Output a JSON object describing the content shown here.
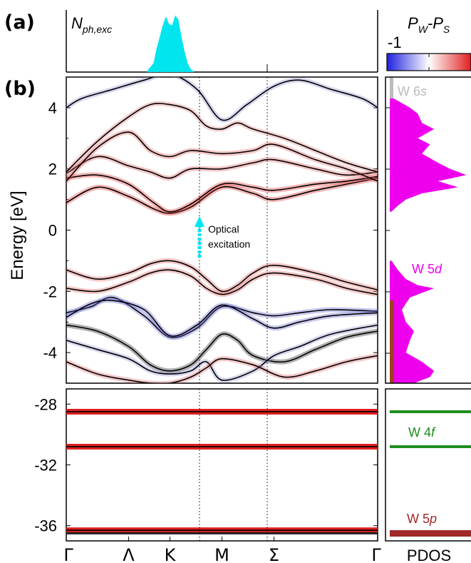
{
  "panel_labels": {
    "a": "(a)",
    "b": "(b)"
  },
  "nexc_label": {
    "base": "N",
    "sub": "ph,exc"
  },
  "colorbar": {
    "label_base": "P",
    "label_sub1": "W",
    "label_mid": "-P",
    "label_sub2": "S",
    "min_label": "-1",
    "low_color": "#2020e0",
    "mid_color": "#ffffff",
    "high_color": "#e02020"
  },
  "y_axis_label": "Energy [eV]",
  "annotation": {
    "line1": "Optical",
    "line2": "excitation",
    "arrow_color": "#00e5ee"
  },
  "pdos_labels": {
    "w6s": {
      "base": "W 6",
      "italic": "s",
      "color": "#bbbbbb"
    },
    "w5d": {
      "base": "W 5",
      "italic": "d",
      "color": "#ee00ee"
    },
    "w4f": {
      "base": "W 4",
      "italic": "f",
      "color": "#1e8c1e"
    },
    "w5p": {
      "base": "W 5",
      "italic": "p",
      "color": "#a02828"
    },
    "xlabel": "PDOS"
  },
  "chart_data": [
    {
      "type": "area",
      "panel": "a",
      "ylabel": "N_ph,exc",
      "x_positions": [
        0,
        0.2,
        0.333,
        0.5,
        0.667,
        0.8,
        1
      ],
      "description_values": "exciton population concentrated around K",
      "x": [
        0.26,
        0.28,
        0.29,
        0.3,
        0.31,
        0.32,
        0.33,
        0.34,
        0.35,
        0.36,
        0.37,
        0.38,
        0.39,
        0.4,
        0.41
      ],
      "values": [
        0.02,
        0.15,
        0.4,
        0.6,
        0.8,
        0.95,
        0.82,
        0.8,
        0.97,
        0.9,
        0.6,
        0.35,
        0.15,
        0.05,
        0.01
      ],
      "color": "#00e5ee"
    },
    {
      "type": "line",
      "panel": "b-valence",
      "xlabel": "",
      "ylabel": "Energy [eV]",
      "k_labels": [
        "Γ",
        "Λ",
        "K",
        "M",
        "Σ",
        "Γ"
      ],
      "k_positions": [
        0,
        0.2,
        0.333,
        0.5,
        0.667,
        1
      ],
      "ylim": [
        -5,
        5
      ],
      "yticks": [
        4,
        2,
        0,
        -2,
        -4
      ],
      "series": [
        {
          "x": [
            0,
            0.1,
            0.2,
            0.28,
            0.333,
            0.4,
            0.5,
            0.6,
            0.667,
            0.8,
            0.9,
            1
          ],
          "y": [
            0.9,
            1.4,
            1.1,
            0.7,
            0.55,
            0.75,
            1.4,
            1.2,
            1.0,
            1.3,
            1.5,
            1.7
          ],
          "color": "#e03030"
        },
        {
          "x": [
            0,
            0.1,
            0.2,
            0.28,
            0.333,
            0.4,
            0.5,
            0.6,
            0.667,
            0.8,
            0.9,
            1
          ],
          "y": [
            1.7,
            1.8,
            1.5,
            0.9,
            0.6,
            0.85,
            1.5,
            1.4,
            1.3,
            1.5,
            1.6,
            1.75
          ],
          "color": "#e03030"
        },
        {
          "x": [
            0,
            0.1,
            0.2,
            0.27,
            0.333,
            0.4,
            0.5,
            0.6,
            0.667,
            0.8,
            0.9,
            1
          ],
          "y": [
            1.85,
            2.4,
            2.1,
            1.9,
            1.7,
            2.0,
            2.0,
            2.2,
            2.3,
            2.0,
            1.8,
            1.9
          ],
          "color": "#e06060"
        },
        {
          "x": [
            0,
            0.1,
            0.2,
            0.27,
            0.333,
            0.4,
            0.5,
            0.6,
            0.667,
            0.8,
            0.9,
            1
          ],
          "y": [
            1.6,
            2.7,
            3.2,
            2.6,
            2.4,
            2.6,
            2.5,
            2.6,
            2.8,
            2.3,
            2.0,
            1.6
          ],
          "color": "#e06060"
        },
        {
          "x": [
            0,
            0.1,
            0.2,
            0.27,
            0.333,
            0.4,
            0.45,
            0.5,
            0.55,
            0.6,
            0.7,
            0.8,
            0.9,
            1
          ],
          "y": [
            1.9,
            2.9,
            3.7,
            4.1,
            4.1,
            3.9,
            3.4,
            3.3,
            3.5,
            3.3,
            3.0,
            2.6,
            2.2,
            1.9
          ],
          "color": "#e08080"
        },
        {
          "x": [
            0,
            0.05,
            0.15,
            0.25,
            0.333,
            0.42,
            0.5,
            0.58,
            0.667,
            0.75,
            0.85,
            0.95,
            1
          ],
          "y": [
            4.0,
            4.3,
            4.6,
            4.9,
            5.1,
            4.6,
            3.6,
            4.1,
            4.7,
            4.9,
            4.6,
            4.3,
            4.0
          ],
          "color": "#9090d0"
        },
        {
          "x": [
            0,
            0.1,
            0.2,
            0.27,
            0.333,
            0.4,
            0.45,
            0.5,
            0.55,
            0.6,
            0.667,
            0.8,
            0.9,
            1
          ],
          "y": [
            -1.3,
            -1.6,
            -1.4,
            -1.1,
            -1.0,
            -1.2,
            -1.6,
            -2.0,
            -1.8,
            -1.4,
            -1.15,
            -1.4,
            -1.7,
            -1.95
          ],
          "color": "#e06060"
        },
        {
          "x": [
            0,
            0.1,
            0.2,
            0.27,
            0.333,
            0.4,
            0.45,
            0.5,
            0.55,
            0.6,
            0.667,
            0.8,
            0.9,
            1
          ],
          "y": [
            -1.9,
            -2.0,
            -1.7,
            -1.4,
            -1.3,
            -1.5,
            -1.9,
            -2.1,
            -1.95,
            -1.6,
            -1.4,
            -1.6,
            -1.9,
            -2.1
          ],
          "color": "#e06060"
        },
        {
          "x": [
            0,
            0.08,
            0.15,
            0.25,
            0.333,
            0.42,
            0.5,
            0.6,
            0.667,
            0.75,
            0.85,
            1
          ],
          "y": [
            -2.7,
            -2.5,
            -2.2,
            -2.8,
            -3.5,
            -3.2,
            -2.5,
            -2.7,
            -2.8,
            -2.7,
            -2.6,
            -2.65
          ],
          "color": "#6060d0"
        },
        {
          "x": [
            0,
            0.08,
            0.15,
            0.25,
            0.333,
            0.42,
            0.5,
            0.6,
            0.667,
            0.75,
            0.85,
            1
          ],
          "y": [
            -2.85,
            -2.4,
            -2.3,
            -2.6,
            -3.45,
            -3.1,
            -2.45,
            -2.9,
            -3.2,
            -3.0,
            -2.8,
            -2.7
          ],
          "color": "#6060d0"
        },
        {
          "x": [
            0,
            0.1,
            0.2,
            0.27,
            0.333,
            0.4,
            0.45,
            0.5,
            0.55,
            0.6,
            0.7,
            0.8,
            0.9,
            1
          ],
          "y": [
            -3.1,
            -3.3,
            -3.8,
            -4.4,
            -4.6,
            -4.4,
            -3.9,
            -3.4,
            -3.6,
            -4.1,
            -4.3,
            -3.9,
            -3.5,
            -3.3
          ],
          "color": "#202020"
        },
        {
          "x": [
            0,
            0.1,
            0.2,
            0.27,
            0.333,
            0.4,
            0.45,
            0.5,
            0.6,
            0.667,
            0.75,
            0.85,
            1
          ],
          "y": [
            -3.6,
            -3.9,
            -4.2,
            -4.6,
            -4.7,
            -4.6,
            -4.3,
            -4.9,
            -4.6,
            -4.1,
            -3.8,
            -3.4,
            -3.1
          ],
          "color": "#9090d0"
        },
        {
          "x": [
            0,
            0.1,
            0.2,
            0.27,
            0.333,
            0.4,
            0.45,
            0.5,
            0.6,
            0.7,
            0.8,
            0.9,
            1
          ],
          "y": [
            -4.3,
            -4.7,
            -4.9,
            -5.0,
            -5.0,
            -4.8,
            -4.5,
            -4.2,
            -4.4,
            -4.8,
            -4.6,
            -4.3,
            -4.1
          ],
          "color": "#e06060"
        }
      ]
    },
    {
      "type": "line",
      "panel": "b-semicore",
      "k_labels": [
        "Γ",
        "Λ",
        "K",
        "M",
        "Σ",
        "Γ"
      ],
      "k_positions": [
        0,
        0.2,
        0.333,
        0.5,
        0.667,
        1
      ],
      "ylim": [
        -37,
        -27
      ],
      "yticks": [
        -28,
        -32,
        -36
      ],
      "series": [
        {
          "y_const": -28.5,
          "color": "#e02020"
        },
        {
          "y_const": -30.8,
          "color": "#e02020"
        },
        {
          "y_const": -36.3,
          "color": "#e02020"
        },
        {
          "y_const": -36.5,
          "color": "#202020"
        }
      ]
    },
    {
      "type": "area",
      "panel": "b-pdos-valence",
      "xlabel": "PDOS",
      "energies": [
        4.3,
        4.0,
        3.8,
        3.5,
        3.3,
        3.0,
        2.8,
        2.5,
        2.2,
        2.0,
        1.8,
        1.6,
        1.4,
        1.2,
        1.0,
        0.8,
        0.6
      ],
      "w5d_values": [
        0.05,
        0.25,
        0.35,
        0.4,
        0.55,
        0.35,
        0.5,
        0.4,
        0.6,
        0.75,
        0.95,
        0.6,
        0.85,
        0.4,
        0.2,
        0.1,
        0.02
      ],
      "energies_vb": [
        -1.0,
        -1.3,
        -1.6,
        -1.8,
        -1.9,
        -2.0,
        -2.2,
        -2.6,
        -3.0,
        -3.3,
        -3.6,
        -4.0,
        -4.3,
        -4.6,
        -4.8,
        -5.0
      ],
      "w5d_values_vb": [
        0.02,
        0.1,
        0.2,
        0.35,
        0.55,
        0.45,
        0.25,
        0.15,
        0.2,
        0.3,
        0.25,
        0.2,
        0.4,
        0.55,
        0.5,
        0.3
      ],
      "w5d_color": "#ee00ee",
      "w6s_color": "#bbbbbb"
    },
    {
      "type": "line",
      "panel": "b-pdos-semicore",
      "w4f_levels": [
        -28.5,
        -30.8
      ],
      "w5p_level": -36.4
    }
  ]
}
